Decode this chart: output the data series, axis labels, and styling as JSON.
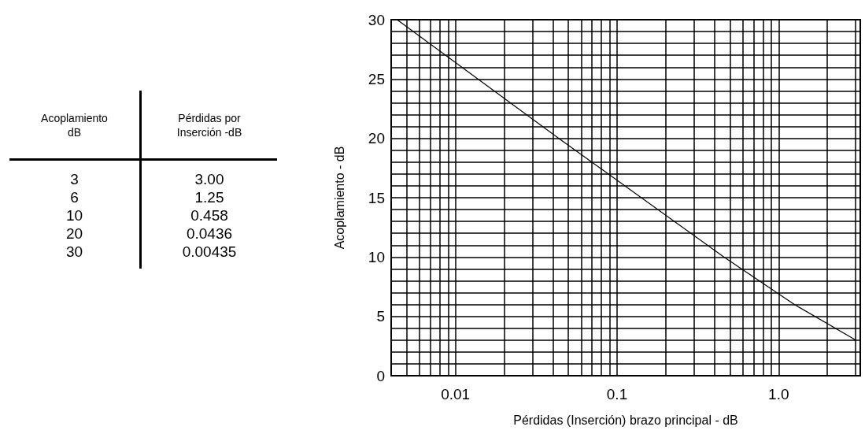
{
  "chart_data": {
    "type": "line",
    "xlabel": "Pérdidas (Inserción) brazo principal - dB",
    "ylabel": "Acoplamiento - dB",
    "annotations": [
      "Acoplamiento dB",
      "Pérdidas por Inserción -dB",
      "3",
      "3.00",
      "6",
      "1.25",
      "10",
      "0.458",
      "20",
      "0.0436",
      "30",
      "0.00435"
    ],
    "x": [
      3.0,
      1.25,
      0.458,
      0.0436,
      0.00435
    ],
    "series": [
      {
        "color": "#000000",
        "values": [
          3,
          6,
          10,
          20,
          30
        ]
      }
    ],
    "log": "x",
    "xlim": [
      0.004,
      3.2
    ],
    "xticks": [
      0.01,
      0.1,
      {
        "value": 1,
        "label": "1.0"
      }
    ],
    "ylim": [
      0,
      30
    ],
    "yticks": [
      0,
      5,
      10,
      15,
      20,
      25,
      30
    ],
    "grid": true
  }
}
